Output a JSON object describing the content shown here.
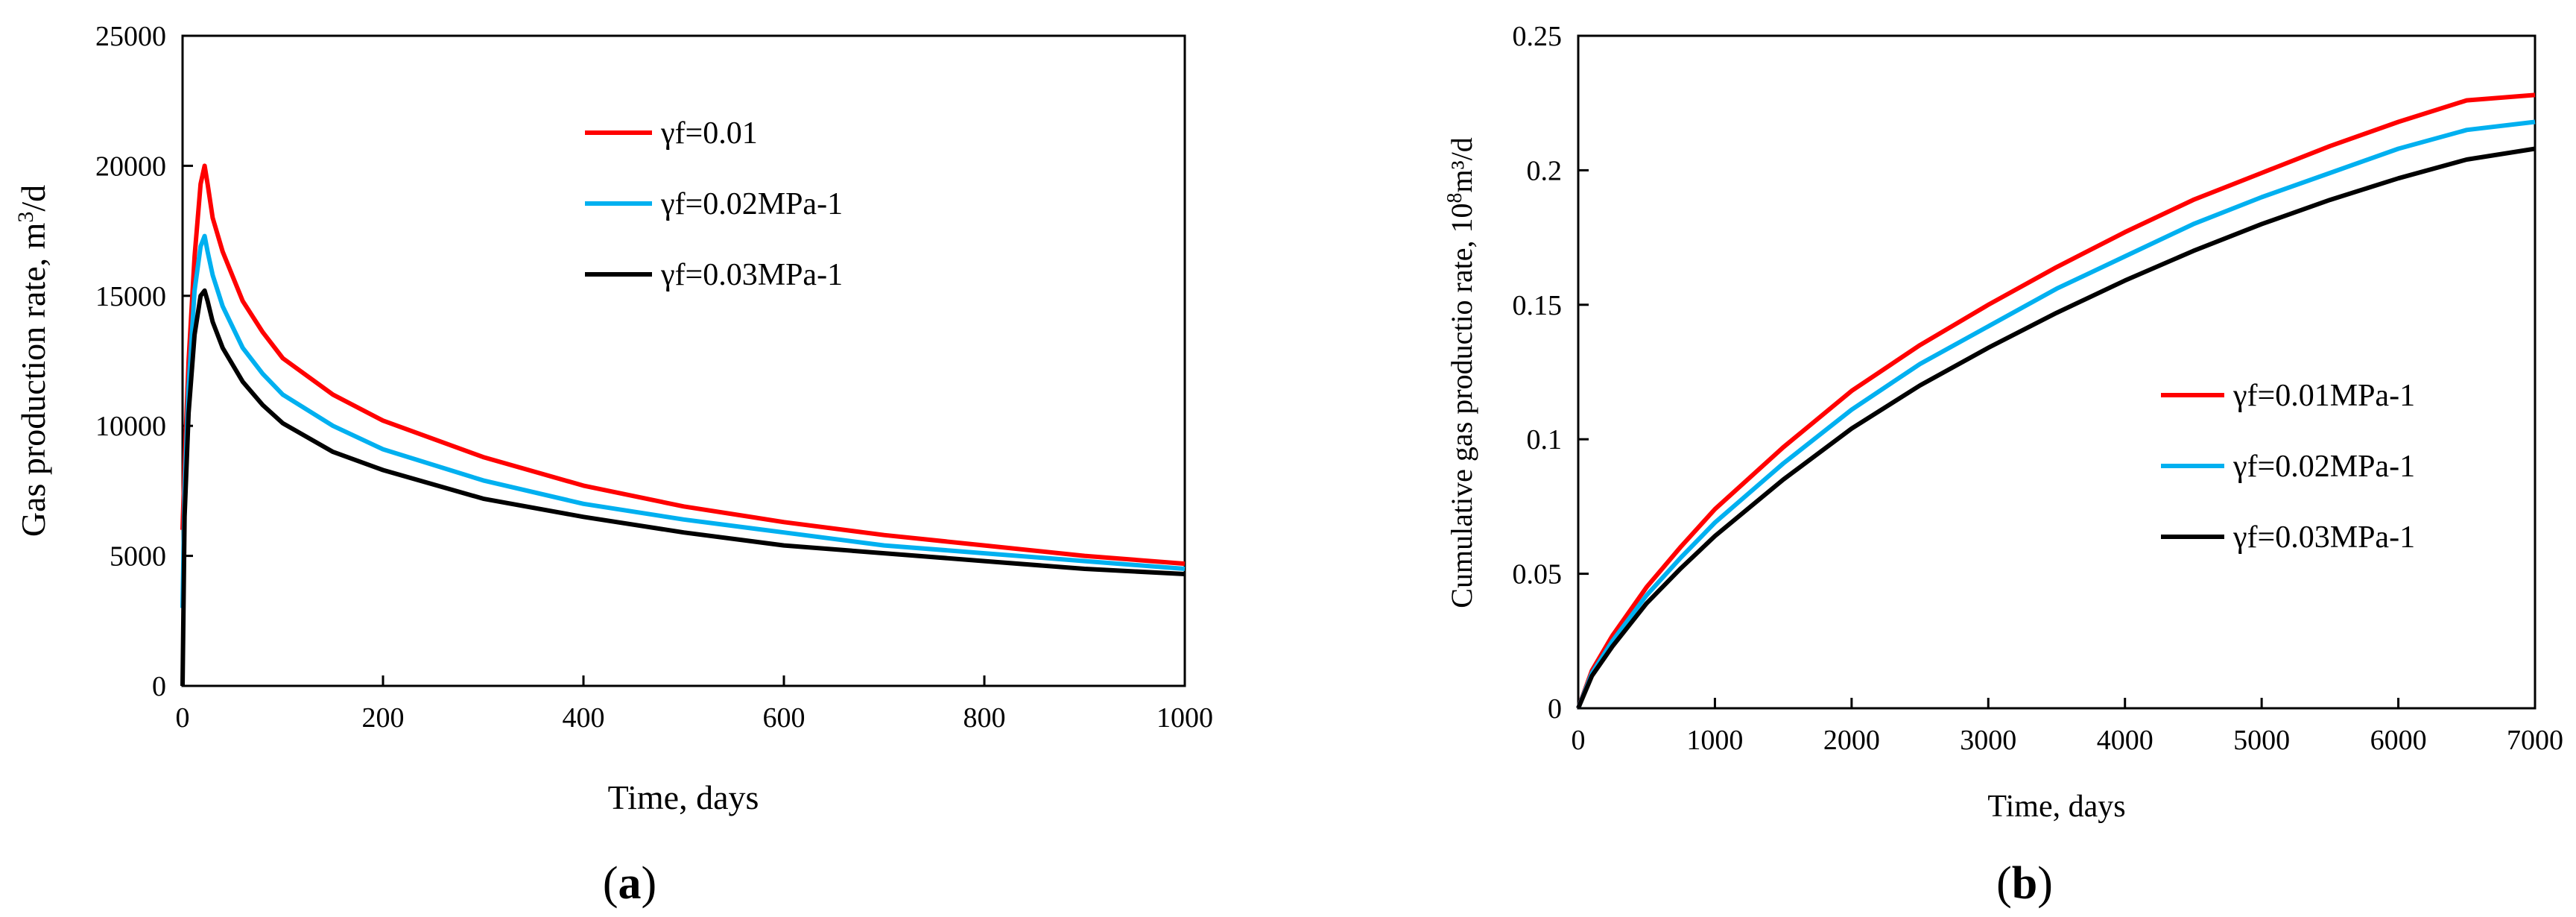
{
  "chart_data": [
    {
      "type": "line",
      "panel_label": "a",
      "xlabel": "Time, days",
      "ylabel": "Gas production rate, m",
      "ylabel_sup": "3",
      "ylabel_tail": "/d",
      "xlim": [
        0,
        1000
      ],
      "ylim": [
        0,
        25000
      ],
      "xticks": [
        0,
        200,
        400,
        600,
        800,
        1000
      ],
      "yticks": [
        0,
        5000,
        10000,
        15000,
        20000,
        25000
      ],
      "grid": false,
      "legend_position": "top-center",
      "series": [
        {
          "name": "γf=0.01",
          "color": "#ff0000",
          "x": [
            0,
            2,
            6,
            12,
            18,
            22,
            25,
            30,
            40,
            60,
            80,
            100,
            150,
            200,
            300,
            400,
            500,
            600,
            700,
            800,
            900,
            1000
          ],
          "y": [
            6000,
            8500,
            12500,
            16500,
            19300,
            20000,
            19300,
            18000,
            16700,
            14800,
            13600,
            12600,
            11200,
            10200,
            8800,
            7700,
            6900,
            6300,
            5800,
            5400,
            5000,
            4700
          ]
        },
        {
          "name": "γf=0.02MPa-1",
          "color": "#00b0f0",
          "x": [
            0,
            2,
            6,
            12,
            18,
            22,
            25,
            30,
            40,
            60,
            80,
            100,
            150,
            200,
            300,
            400,
            500,
            600,
            700,
            800,
            900,
            1000
          ],
          "y": [
            3000,
            7500,
            11500,
            15200,
            16900,
            17300,
            16700,
            15800,
            14600,
            13000,
            12000,
            11200,
            10000,
            9100,
            7900,
            7000,
            6400,
            5900,
            5400,
            5100,
            4800,
            4500
          ]
        },
        {
          "name": "γf=0.03MPa-1",
          "color": "#000000",
          "x": [
            0,
            2,
            6,
            12,
            18,
            22,
            25,
            30,
            40,
            60,
            80,
            100,
            150,
            200,
            300,
            400,
            500,
            600,
            700,
            800,
            900,
            1000
          ],
          "y": [
            0,
            6500,
            10500,
            13500,
            15000,
            15200,
            14800,
            14000,
            13000,
            11700,
            10800,
            10100,
            9000,
            8300,
            7200,
            6500,
            5900,
            5400,
            5100,
            4800,
            4500,
            4300
          ]
        }
      ]
    },
    {
      "type": "line",
      "panel_label": "b",
      "xlabel": "Time, days",
      "ylabel": "Cumulative gas productio rate, 10",
      "ylabel_sup": "8",
      "ylabel_tail": "m³/d",
      "xlim": [
        0,
        7000
      ],
      "ylim": [
        0,
        0.25
      ],
      "xticks": [
        0,
        1000,
        2000,
        3000,
        4000,
        5000,
        6000,
        7000
      ],
      "yticks": [
        0,
        0.05,
        0.1,
        0.15,
        0.2,
        0.25
      ],
      "ytick_labels": [
        "0",
        "0.05",
        "0.1",
        "0.15",
        "0.2",
        "0.25"
      ],
      "grid": false,
      "legend_position": "right-middle",
      "series": [
        {
          "name": "γf=0.01MPa-1",
          "color": "#ff0000",
          "x": [
            0,
            100,
            250,
            500,
            750,
            1000,
            1500,
            2000,
            2500,
            3000,
            3500,
            4000,
            4500,
            5000,
            5500,
            6000,
            6500,
            7000
          ],
          "y": [
            0,
            0.014,
            0.027,
            0.045,
            0.06,
            0.074,
            0.097,
            0.118,
            0.135,
            0.15,
            0.164,
            0.177,
            0.189,
            0.199,
            0.209,
            0.218,
            0.226,
            0.228
          ]
        },
        {
          "name": "γf=0.02MPa-1",
          "color": "#00b0f0",
          "x": [
            0,
            100,
            250,
            500,
            750,
            1000,
            1500,
            2000,
            2500,
            3000,
            3500,
            4000,
            4500,
            5000,
            5500,
            6000,
            6500,
            7000
          ],
          "y": [
            0,
            0.013,
            0.025,
            0.042,
            0.056,
            0.069,
            0.091,
            0.111,
            0.128,
            0.142,
            0.156,
            0.168,
            0.18,
            0.19,
            0.199,
            0.208,
            0.215,
            0.218
          ]
        },
        {
          "name": "γf=0.03MPa-1",
          "color": "#000000",
          "x": [
            0,
            100,
            250,
            500,
            750,
            1000,
            1500,
            2000,
            2500,
            3000,
            3500,
            4000,
            4500,
            5000,
            5500,
            6000,
            6500,
            7000
          ],
          "y": [
            0,
            0.012,
            0.023,
            0.039,
            0.052,
            0.064,
            0.085,
            0.104,
            0.12,
            0.134,
            0.147,
            0.159,
            0.17,
            0.18,
            0.189,
            0.197,
            0.204,
            0.208
          ]
        }
      ]
    }
  ]
}
